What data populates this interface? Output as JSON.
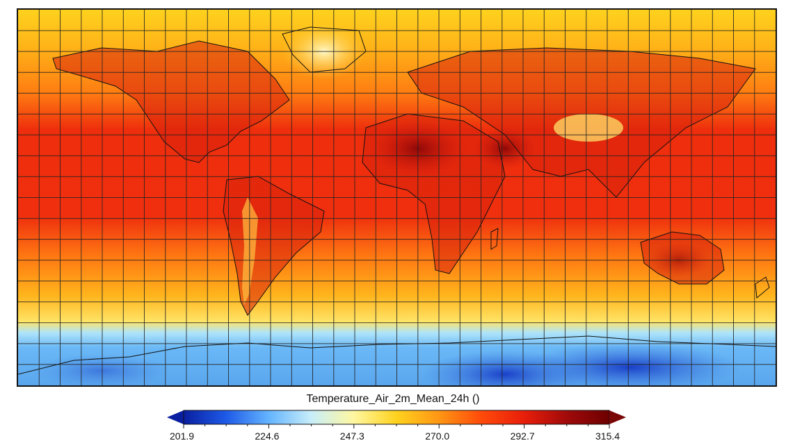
{
  "map": {
    "variable": "Temperature_Air_2m_Mean_24h ()",
    "projection": "equirectangular",
    "graticule_spacing_deg": 10,
    "grid": true,
    "coastlines": true
  },
  "colorbar": {
    "min": 201.9,
    "max": 315.4,
    "extend": "both",
    "ticks": [
      "201.9",
      "224.6",
      "247.3",
      "270.0",
      "292.7",
      "315.4"
    ],
    "colors": [
      "#0a1fa0",
      "#1e5ae8",
      "#64b4ff",
      "#c8eefa",
      "#fff7a0",
      "#ffd21e",
      "#ff9614",
      "#ff4a0a",
      "#e81e0a",
      "#a00a0a",
      "#6e0000"
    ],
    "left_arrow_color": "#0a1fa0",
    "right_arrow_color": "#7a0606"
  },
  "colors": {
    "tropics": "#ef2f0e",
    "desert_hot": "#b30f0f",
    "greenland": "#fff0a0",
    "antarctica": "#4a8ee0",
    "antarctica_cold": "#1e4ed0",
    "polar_sea": "#ffd01c"
  }
}
